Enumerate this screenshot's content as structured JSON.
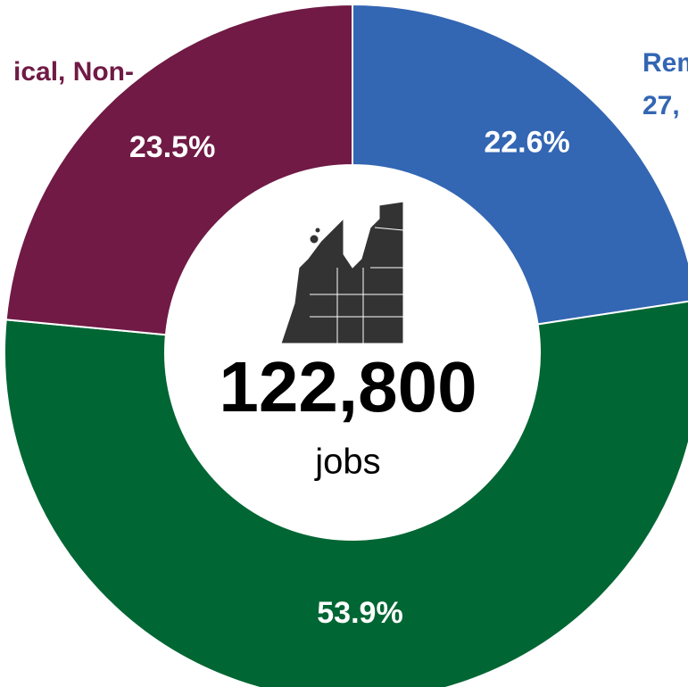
{
  "chart_data": {
    "type": "donut",
    "categories": [
      "Rem",
      null,
      "ical, Non-"
    ],
    "category_sublabels": [
      "27,",
      null,
      null
    ],
    "values": [
      22.6,
      53.9,
      23.5
    ],
    "value_labels": [
      "22.6%",
      "53.9%",
      "23.5%"
    ],
    "colors": [
      "#3366b3",
      "#006633",
      "#701a45"
    ],
    "center_label": "122,800",
    "center_sublabel": "jobs"
  }
}
